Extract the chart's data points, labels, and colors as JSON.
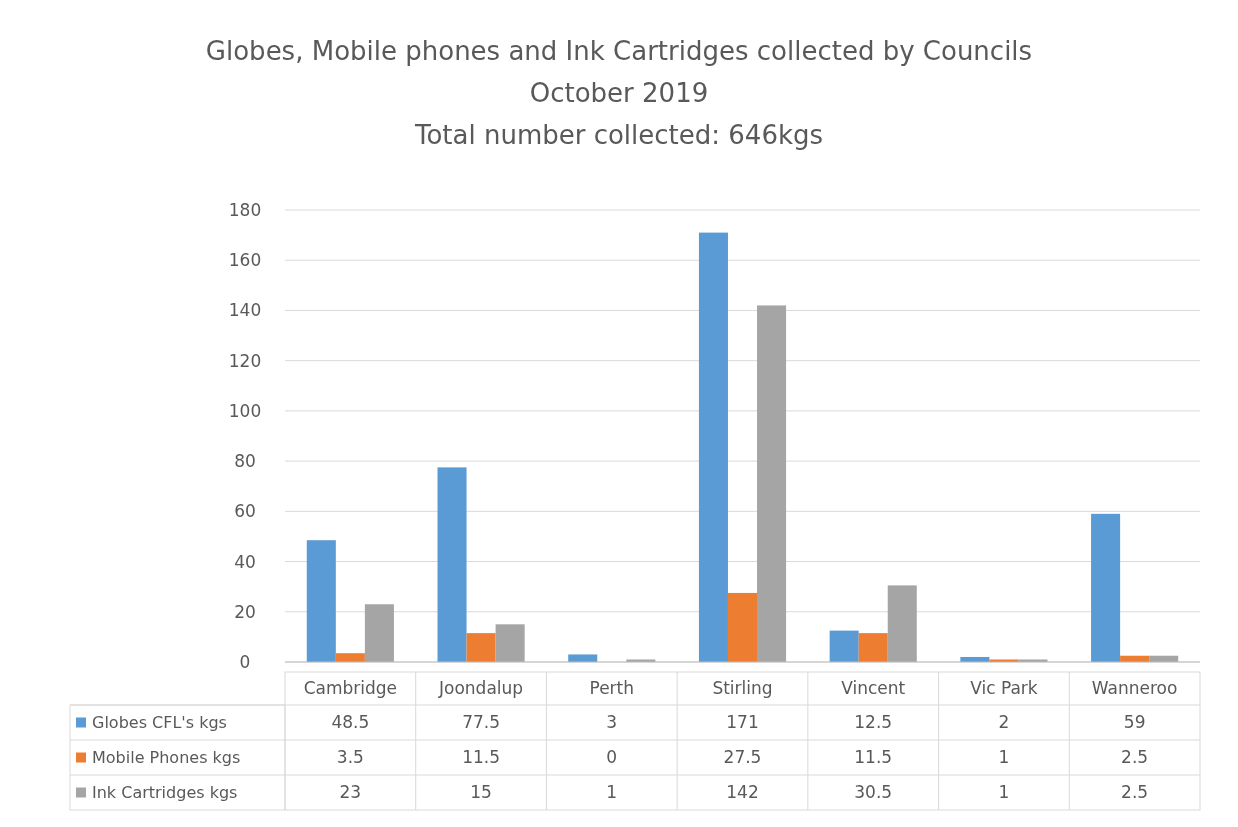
{
  "chart_data": {
    "type": "bar",
    "title": "Globes, Mobile phones and Ink Cartridges collected by Councils",
    "subtitle": "October 2019",
    "annotations": [
      "Total number collected: 646kgs"
    ],
    "categories": [
      "Cambridge",
      "Joondalup",
      "Perth",
      "Stirling",
      "Vincent",
      "Vic Park",
      "Wanneroo"
    ],
    "series": [
      {
        "name": "Globes CFL's kgs",
        "color": "#5b9bd5",
        "values": [
          48.5,
          77.5,
          3,
          171,
          12.5,
          2,
          59
        ]
      },
      {
        "name": "Mobile Phones kgs",
        "color": "#ed7d31",
        "values": [
          3.5,
          11.5,
          0,
          27.5,
          11.5,
          1,
          2.5
        ]
      },
      {
        "name": "Ink Cartridges kgs",
        "color": "#a5a5a5",
        "values": [
          23,
          15,
          1,
          142,
          30.5,
          1,
          2.5
        ]
      }
    ],
    "ylim": [
      0,
      180
    ],
    "yticks": [
      0,
      20,
      40,
      60,
      80,
      100,
      120,
      140,
      160,
      180
    ],
    "grid": "y",
    "data_labels": true,
    "legend": "bottom"
  }
}
